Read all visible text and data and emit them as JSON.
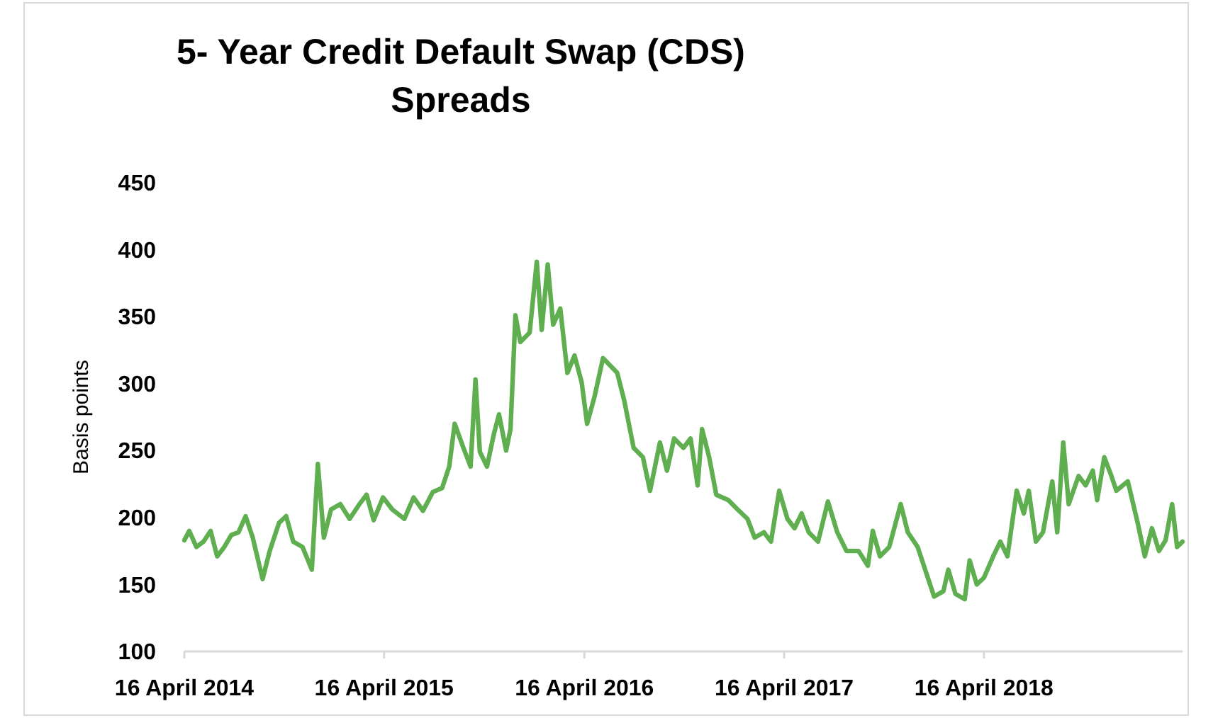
{
  "chart_data": {
    "type": "line",
    "title": "5- Year Credit Default Swap (CDS) Spreads",
    "ylabel": "Basis points",
    "xlim": [
      "2014-04-16",
      "2019-04-14"
    ],
    "xticks": [
      {
        "value": "2014-04-16",
        "label": "16 April 2014"
      },
      {
        "value": "2015-04-16",
        "label": "16 April 2015"
      },
      {
        "value": "2016-04-16",
        "label": "16 April 2016"
      },
      {
        "value": "2017-04-16",
        "label": "16 April 2017"
      },
      {
        "value": "2018-04-16",
        "label": "16 April 2018"
      }
    ],
    "ylim": [
      100,
      450
    ],
    "yticks": [
      100,
      150,
      200,
      250,
      300,
      350,
      400,
      450
    ],
    "grid": false,
    "marker": "none",
    "line_style": "solid",
    "series": [
      {
        "color": "#5fae50",
        "x": [
          "2014-04-16",
          "2014-04-25",
          "2014-05-08",
          "2014-05-21",
          "2014-06-03",
          "2014-06-15",
          "2014-06-28",
          "2014-07-11",
          "2014-07-24",
          "2014-08-06",
          "2014-08-19",
          "2014-09-06",
          "2014-09-19",
          "2014-10-06",
          "2014-10-19",
          "2014-11-01",
          "2014-11-18",
          "2014-12-05",
          "2014-12-16",
          "2014-12-27",
          "2015-01-09",
          "2015-01-26",
          "2015-02-12",
          "2015-03-02",
          "2015-03-15",
          "2015-03-28",
          "2015-04-14",
          "2015-05-01",
          "2015-05-23",
          "2015-06-09",
          "2015-06-26",
          "2015-07-14",
          "2015-07-31",
          "2015-08-13",
          "2015-08-23",
          "2015-09-08",
          "2015-09-21",
          "2015-09-30",
          "2015-10-08",
          "2015-10-21",
          "2015-11-03",
          "2015-11-12",
          "2015-11-25",
          "2015-12-03",
          "2015-12-12",
          "2015-12-21",
          "2016-01-07",
          "2016-01-20",
          "2016-01-29",
          "2016-02-09",
          "2016-02-19",
          "2016-03-03",
          "2016-03-16",
          "2016-03-29",
          "2016-04-11",
          "2016-04-21",
          "2016-05-05",
          "2016-05-20",
          "2016-06-15",
          "2016-06-28",
          "2016-07-15",
          "2016-08-01",
          "2016-08-14",
          "2016-09-01",
          "2016-09-14",
          "2016-09-27",
          "2016-10-14",
          "2016-10-27",
          "2016-11-09",
          "2016-11-17",
          "2016-11-30",
          "2016-12-13",
          "2017-01-04",
          "2017-01-21",
          "2017-02-08",
          "2017-02-21",
          "2017-03-10",
          "2017-03-23",
          "2017-04-07",
          "2017-04-22",
          "2017-05-05",
          "2017-05-18",
          "2017-05-31",
          "2017-06-17",
          "2017-07-05",
          "2017-07-22",
          "2017-08-08",
          "2017-08-30",
          "2017-09-16",
          "2017-09-25",
          "2017-10-08",
          "2017-10-25",
          "2017-11-15",
          "2017-11-28",
          "2017-12-16",
          "2018-01-02",
          "2018-01-15",
          "2018-02-01",
          "2018-02-10",
          "2018-02-23",
          "2018-03-12",
          "2018-03-21",
          "2018-04-03",
          "2018-04-16",
          "2018-05-03",
          "2018-05-16",
          "2018-05-29",
          "2018-06-15",
          "2018-06-28",
          "2018-07-07",
          "2018-07-20",
          "2018-08-02",
          "2018-08-19",
          "2018-08-28",
          "2018-09-08",
          "2018-09-18",
          "2018-10-06",
          "2018-10-19",
          "2018-11-01",
          "2018-11-09",
          "2018-11-22",
          "2018-12-05",
          "2018-12-14",
          "2019-01-04",
          "2019-01-22",
          "2019-02-04",
          "2019-02-17",
          "2019-03-02",
          "2019-03-14",
          "2019-03-26",
          "2019-04-04",
          "2019-04-14"
        ],
        "values": [
          183,
          190,
          178,
          182,
          190,
          171,
          178,
          187,
          189,
          201,
          185,
          154,
          175,
          196,
          201,
          182,
          178,
          161,
          240,
          185,
          206,
          210,
          199,
          210,
          217,
          198,
          215,
          206,
          199,
          215,
          205,
          219,
          222,
          238,
          270,
          252,
          238,
          303,
          249,
          238,
          263,
          277,
          250,
          266,
          351,
          331,
          338,
          391,
          340,
          389,
          344,
          356,
          308,
          321,
          301,
          270,
          291,
          319,
          308,
          287,
          252,
          245,
          220,
          256,
          235,
          259,
          252,
          259,
          224,
          266,
          245,
          217,
          213,
          206,
          199,
          185,
          189,
          182,
          220,
          199,
          192,
          203,
          189,
          182,
          212,
          189,
          175,
          175,
          164,
          190,
          171,
          178,
          210,
          189,
          178,
          157,
          141,
          145,
          161,
          143,
          139,
          168,
          150,
          155,
          171,
          182,
          171,
          220,
          203,
          220,
          182,
          189,
          227,
          189,
          256,
          210,
          231,
          224,
          235,
          213,
          245,
          231,
          220,
          227,
          196,
          171,
          192,
          175,
          183,
          210,
          178,
          182
        ]
      }
    ]
  }
}
